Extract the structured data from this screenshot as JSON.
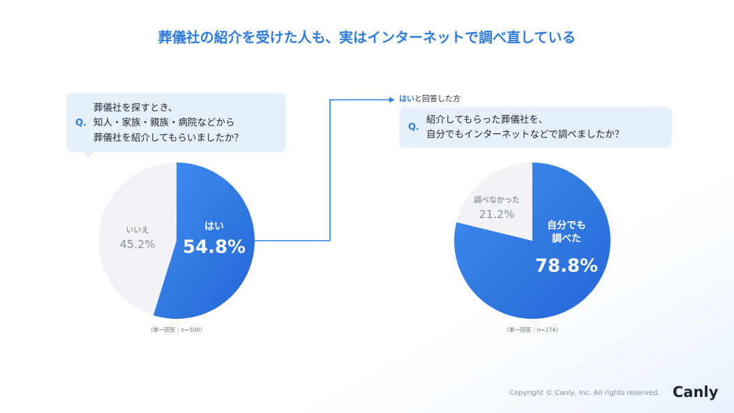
{
  "title": "葬儀社の紹介を受けた人も、実はインターネットで調べ直している",
  "copyright": "Copyright © Canly, Inc. All rights reserved.",
  "logo": "Canly",
  "chart_data": [
    {
      "type": "pie",
      "question_mark": "Q.",
      "question": [
        "葬儀社を探すとき、",
        "知人・家族・親族・病院などから",
        "葬儀社を紹介してもらいましたか？"
      ],
      "categories": [
        "はい",
        "いいえ"
      ],
      "values": [
        54.8,
        45.2
      ],
      "value_labels": [
        "54.8%",
        "45.2%"
      ],
      "colors": [
        "#2d7be0",
        "#f2f3f6"
      ],
      "note": "（単一回答｜n=500）"
    },
    {
      "type": "pie",
      "filter_label": {
        "highlight": "はい",
        "text": "と回答した方"
      },
      "question_mark": "Q.",
      "question": [
        "紹介してもらった葬儀社を、",
        "自分でもインターネットなどで調べましたか？"
      ],
      "categories": [
        "自分でも\n調べた",
        "調べなかった"
      ],
      "values": [
        78.8,
        21.2
      ],
      "value_labels": [
        "78.8%",
        "21.2%"
      ],
      "colors": [
        "#2d7be0",
        "#f2f3f6"
      ],
      "note": "（単一回答｜n=274）"
    }
  ]
}
